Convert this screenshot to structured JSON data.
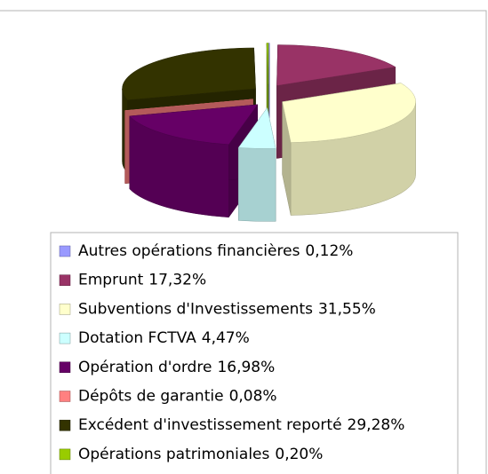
{
  "chart_data": {
    "type": "pie",
    "categories": [
      "Autres opérations financières",
      "Emprunt",
      "Subventions d'Investissements",
      "Dotation FCTVA",
      "Opération d'ordre",
      "Dépôts de garantie",
      "Excédent d'investissement reporté",
      "Opérations patrimoniales"
    ],
    "values": [
      0.12,
      17.32,
      31.55,
      4.47,
      16.98,
      0.08,
      29.28,
      0.2
    ],
    "value_labels": [
      "0,12%",
      "17,32%",
      "31,55%",
      "4,47%",
      "16,98%",
      "0,08%",
      "29,28%",
      "0,20%"
    ],
    "colors": [
      "#9999ff",
      "#993366",
      "#ffffcc",
      "#ccffff",
      "#660066",
      "#ff8080",
      "#333300",
      "#99cc00"
    ],
    "legend": "bottom"
  }
}
